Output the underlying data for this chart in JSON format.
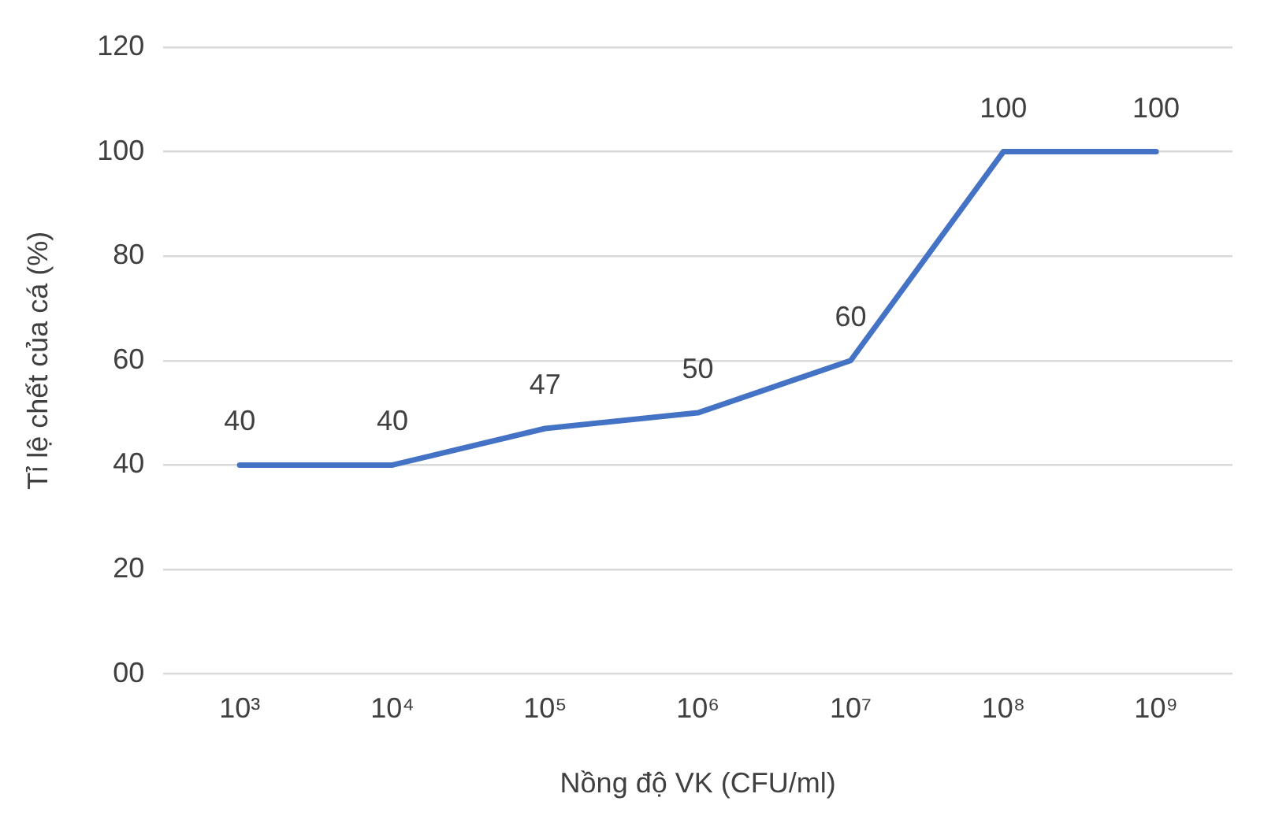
{
  "chart_data": {
    "type": "line",
    "xlabel": "Nồng độ VK (CFU/ml)",
    "ylabel": "Tỉ lệ chết của cá (%)",
    "categories": [
      "10³",
      "10⁴",
      "10⁵",
      "10⁶",
      "10⁷",
      "10⁸",
      "10⁹"
    ],
    "series": [
      {
        "color": "#4472c4",
        "values": [
          40,
          40,
          47,
          50,
          60,
          100,
          100
        ]
      }
    ],
    "ylim": [
      0,
      120
    ],
    "yticks": [
      {
        "value": 0,
        "label": "00"
      },
      20,
      40,
      60,
      80,
      100,
      120
    ],
    "grid": "y",
    "legend": false,
    "marker": "none",
    "line_style": "solid",
    "data_labels": true
  }
}
